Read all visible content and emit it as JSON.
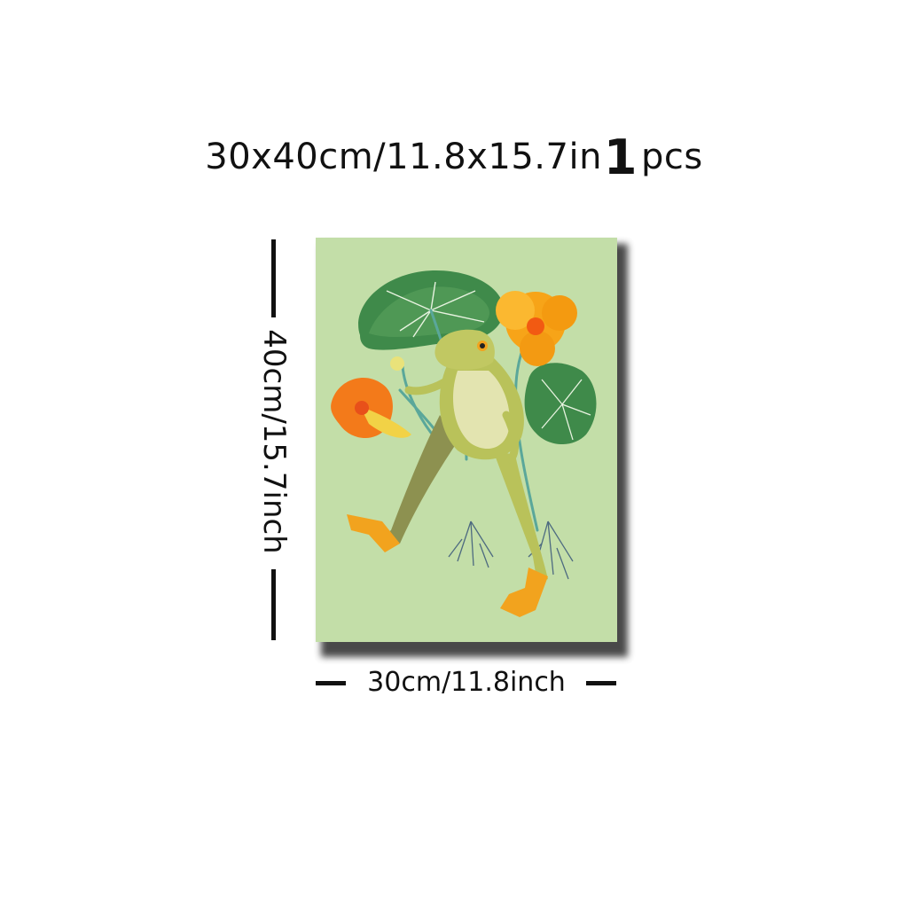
{
  "header": {
    "size_text": "30x40cm/11.8x15.7in",
    "quantity": "1",
    "unit": "pcs"
  },
  "dimensions": {
    "height_label": "40cm/15.7inch",
    "width_label": "30cm/11.8inch"
  },
  "artwork": {
    "background_color": "#c3dea8",
    "frog_color": "#b9c25a",
    "leaf_color": "#3f8a4a",
    "flower_color": "#f7a418"
  }
}
